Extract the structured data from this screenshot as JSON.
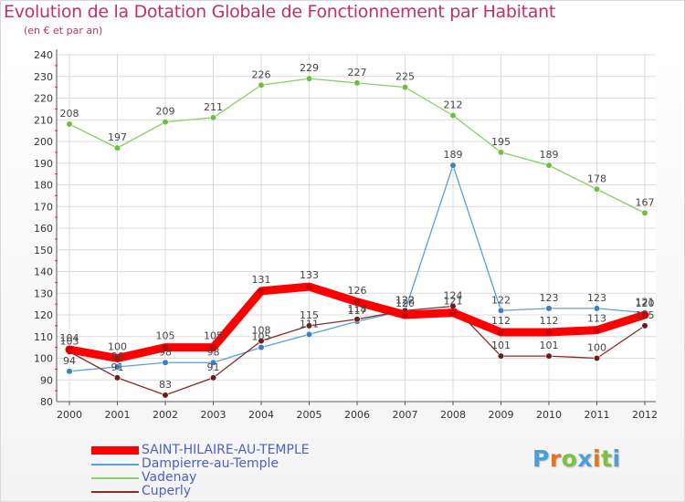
{
  "title": "Evolution de la Dotation Globale de Fonctionnement par Habitant",
  "subtitle": "(en € et par an)",
  "logo": {
    "text": "Proxiti",
    "letter_colors": [
      "#4a9fd8",
      "#e8731e",
      "#7cc142",
      "#4a9fd8",
      "#e8731e",
      "#7cc142",
      "#4a9fd8"
    ]
  },
  "chart_data": {
    "type": "line",
    "title": "Evolution de la Dotation Globale de Fonctionnement par Habitant",
    "subtitle": "(en € et par an)",
    "xlabel": "",
    "ylabel": "",
    "categories": [
      "2000",
      "2001",
      "2002",
      "2003",
      "2004",
      "2005",
      "2006",
      "2007",
      "2008",
      "2009",
      "2010",
      "2011",
      "2012"
    ],
    "ylim": [
      80,
      240
    ],
    "yticks": [
      80,
      90,
      100,
      110,
      120,
      130,
      140,
      150,
      160,
      170,
      180,
      190,
      200,
      210,
      220,
      230,
      240
    ],
    "grid": true,
    "legend_position": "bottom-left",
    "series": [
      {
        "name": "SAINT-HILAIRE-AU-TEMPLE",
        "color": "#ff0000",
        "marker": "#cc0000",
        "emphasis": true,
        "values": [
          104,
          100,
          105,
          105,
          131,
          133,
          126,
          120,
          121,
          112,
          112,
          113,
          120
        ]
      },
      {
        "name": "Dampierre-au-Temple",
        "color": "#5b9fd8",
        "marker": "#3b7fc0",
        "emphasis": false,
        "values": [
          94,
          96,
          98,
          98,
          105,
          111,
          117,
          122,
          189,
          122,
          123,
          123,
          121
        ]
      },
      {
        "name": "Vadenay",
        "color": "#88d060",
        "marker": "#6fbf3f",
        "emphasis": false,
        "values": [
          208,
          197,
          209,
          211,
          226,
          229,
          227,
          225,
          212,
          195,
          189,
          178,
          167
        ]
      },
      {
        "name": "Cuperly",
        "color": "#8b2a2a",
        "marker": "#6d1b1b",
        "emphasis": false,
        "values": [
          103,
          91,
          83,
          91,
          108,
          115,
          118,
          122,
          124,
          101,
          101,
          100,
          115
        ]
      }
    ]
  }
}
